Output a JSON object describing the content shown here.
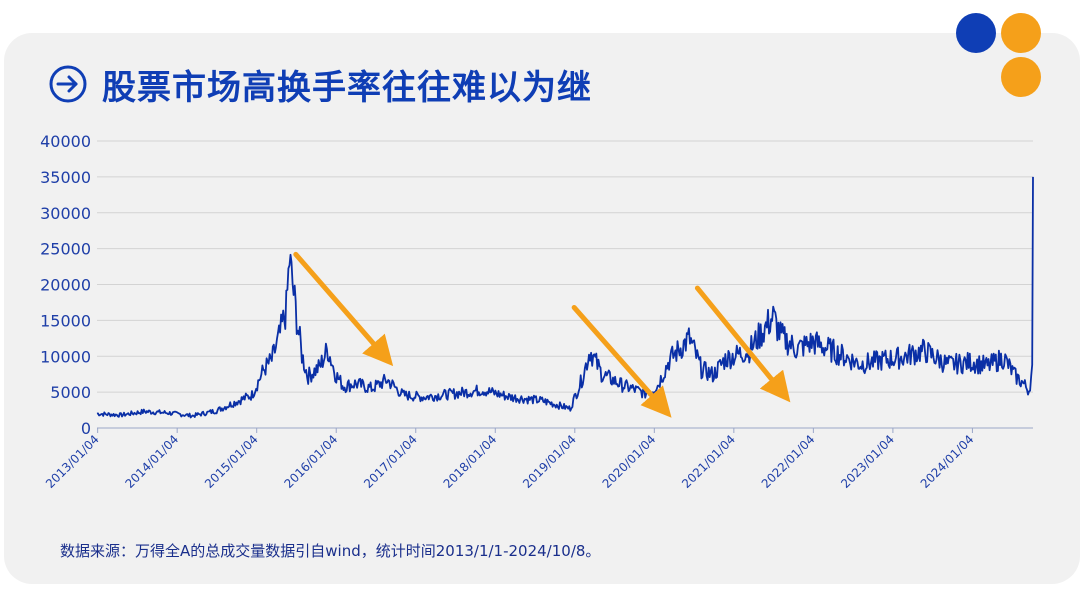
{
  "page": {
    "title": "股票市场高换手率往往难以为继",
    "footnote": "数据来源：万得全A的总成交量数据引自wind，统计时间2013/1/1-2024/10/8。",
    "colors": {
      "accent_blue": "#0f3eb5",
      "line_blue": "#0a2fa6",
      "arrow_orange": "#f5a01a",
      "card_bg": "#f1f1f1"
    },
    "icons": [
      "arrow-circle-right-icon"
    ],
    "decor_dots": [
      {
        "name": "dot-blue",
        "color": "#0f3eb5"
      },
      {
        "name": "dot-orange-top",
        "color": "#f5a01a"
      },
      {
        "name": "dot-orange-bottom",
        "color": "#f5a01a"
      }
    ]
  },
  "chart_data": {
    "type": "line",
    "title": "",
    "xlabel": "",
    "ylabel": "",
    "ylim": [
      0,
      40000
    ],
    "yticks": [
      "0",
      "5000",
      "10000",
      "15000",
      "20000",
      "25000",
      "30000",
      "35000",
      "40000"
    ],
    "xticks": [
      "2013/01/04",
      "2014/01/04",
      "2015/01/04",
      "2016/01/04",
      "2017/01/04",
      "2018/01/04",
      "2019/01/04",
      "2020/01/04",
      "2021/01/04",
      "2022/01/04",
      "2023/01/04",
      "2024/01/04"
    ],
    "grid": true,
    "series": [
      {
        "values_note": "approximate daily turnover readings",
        "x": [
          2013.0,
          2013.3,
          2013.6,
          2013.9,
          2014.2,
          2014.5,
          2014.8,
          2014.95,
          2015.1,
          2015.2,
          2015.3,
          2015.38,
          2015.42,
          2015.46,
          2015.52,
          2015.58,
          2015.65,
          2015.8,
          2015.9,
          2016.0,
          2016.1,
          2016.25,
          2016.45,
          2016.65,
          2016.85,
          2017.1,
          2017.5,
          2017.85,
          2018.2,
          2018.6,
          2018.95,
          2019.1,
          2019.2,
          2019.35,
          2019.6,
          2019.9,
          2020.05,
          2020.2,
          2020.45,
          2020.6,
          2020.75,
          2020.9,
          2021.2,
          2021.5,
          2021.6,
          2021.8,
          2022.0,
          2022.3,
          2022.6,
          2022.9,
          2023.1,
          2023.4,
          2023.7,
          2024.0,
          2024.2,
          2024.4,
          2024.55,
          2024.65,
          2024.72,
          2024.76,
          2024.77
        ],
        "y": [
          2000,
          1800,
          2300,
          2100,
          1700,
          2400,
          3900,
          4600,
          8200,
          9500,
          13000,
          16500,
          23500,
          20000,
          14500,
          10000,
          7200,
          8500,
          11000,
          7500,
          5800,
          6200,
          5500,
          6700,
          4600,
          4300,
          4800,
          5300,
          4300,
          3800,
          2700,
          6800,
          10800,
          7500,
          6000,
          4800,
          5900,
          9500,
          12500,
          8200,
          7400,
          9600,
          10800,
          15500,
          12800,
          11000,
          12000,
          10500,
          8900,
          9500,
          9800,
          10800,
          8800,
          9200,
          8600,
          9800,
          7200,
          6200,
          5200,
          8000,
          35000
        ]
      }
    ],
    "annotations": [
      {
        "type": "down-arrow",
        "from": [
          2015.5,
          24200
        ],
        "to": [
          2016.6,
          10200
        ]
      },
      {
        "type": "down-arrow",
        "from": [
          2019.0,
          16800
        ],
        "to": [
          2020.1,
          3000
        ]
      },
      {
        "type": "down-arrow",
        "from": [
          2020.55,
          19500
        ],
        "to": [
          2021.6,
          5200
        ]
      }
    ]
  }
}
